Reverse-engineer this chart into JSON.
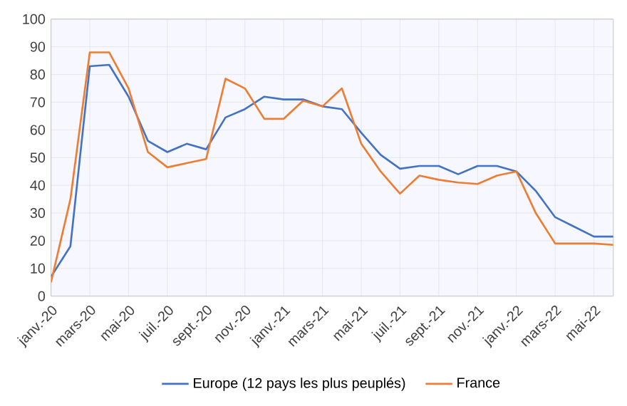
{
  "chart_data": {
    "type": "line",
    "categories": [
      "janv.-20",
      null,
      "mars-20",
      null,
      "mai-20",
      null,
      "juil.-20",
      null,
      "sept.-20",
      null,
      "nov.-20",
      null,
      "janv.-21",
      null,
      "mars-21",
      null,
      "mai-21",
      null,
      "juil.-21",
      null,
      "sept.-21",
      null,
      "nov.-21",
      null,
      "janv.-22",
      null,
      "mars-22",
      null,
      "mai-22",
      null
    ],
    "series": [
      {
        "name": "Europe (12 pays les plus peuplés)",
        "color": "#4472c4",
        "values": [
          7,
          18,
          83,
          83.5,
          72,
          56,
          52,
          55,
          53,
          64.5,
          67.5,
          72,
          71,
          71,
          68.5,
          67.5,
          59,
          51,
          46,
          47,
          47,
          44,
          47,
          47,
          45,
          38,
          28.5,
          25,
          21.5,
          21.5
        ]
      },
      {
        "name": "France",
        "color": "#ed7d31",
        "values": [
          5,
          35,
          88,
          88,
          75,
          52,
          46.5,
          48,
          49.5,
          78.5,
          75,
          64,
          64,
          70.5,
          68.5,
          75,
          55,
          45,
          37,
          43.5,
          42,
          41,
          40.5,
          43.5,
          45,
          30,
          19,
          19,
          19,
          18.5
        ]
      }
    ],
    "ylim": [
      0,
      100
    ],
    "yticks": [
      0,
      10,
      20,
      30,
      40,
      50,
      60,
      70,
      80,
      90,
      100
    ],
    "grid": true,
    "legend": "bottom",
    "marker": "none",
    "line_style": "solid"
  }
}
